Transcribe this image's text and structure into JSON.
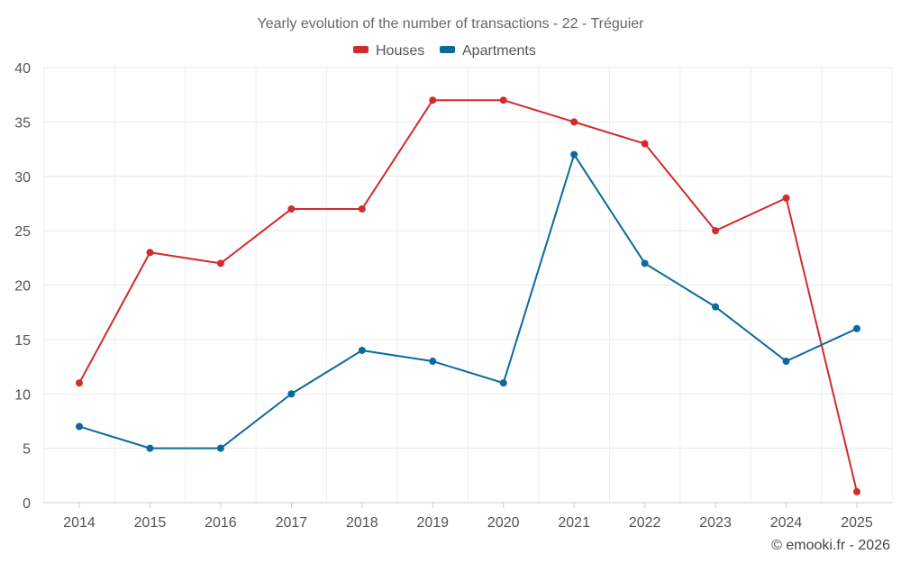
{
  "chart_data": {
    "type": "line",
    "title": "Yearly evolution of the number of transactions - 22 - Tréguier",
    "categories": [
      "2014",
      "2015",
      "2016",
      "2017",
      "2018",
      "2019",
      "2020",
      "2021",
      "2022",
      "2023",
      "2024",
      "2025"
    ],
    "series": [
      {
        "name": "Houses",
        "color": "#d32a2a",
        "values": [
          11,
          23,
          22,
          27,
          27,
          37,
          37,
          35,
          33,
          25,
          28,
          1
        ]
      },
      {
        "name": "Apartments",
        "color": "#0a6a9e",
        "values": [
          7,
          5,
          5,
          10,
          14,
          13,
          11,
          32,
          22,
          18,
          13,
          16
        ]
      }
    ],
    "ylim": [
      0,
      40
    ],
    "yticks": [
      0,
      5,
      10,
      15,
      20,
      25,
      30,
      35,
      40
    ],
    "xlabel": "",
    "ylabel": "",
    "grid": true,
    "legend_position": "top-center"
  },
  "credit": "© emooki.fr - 2026"
}
